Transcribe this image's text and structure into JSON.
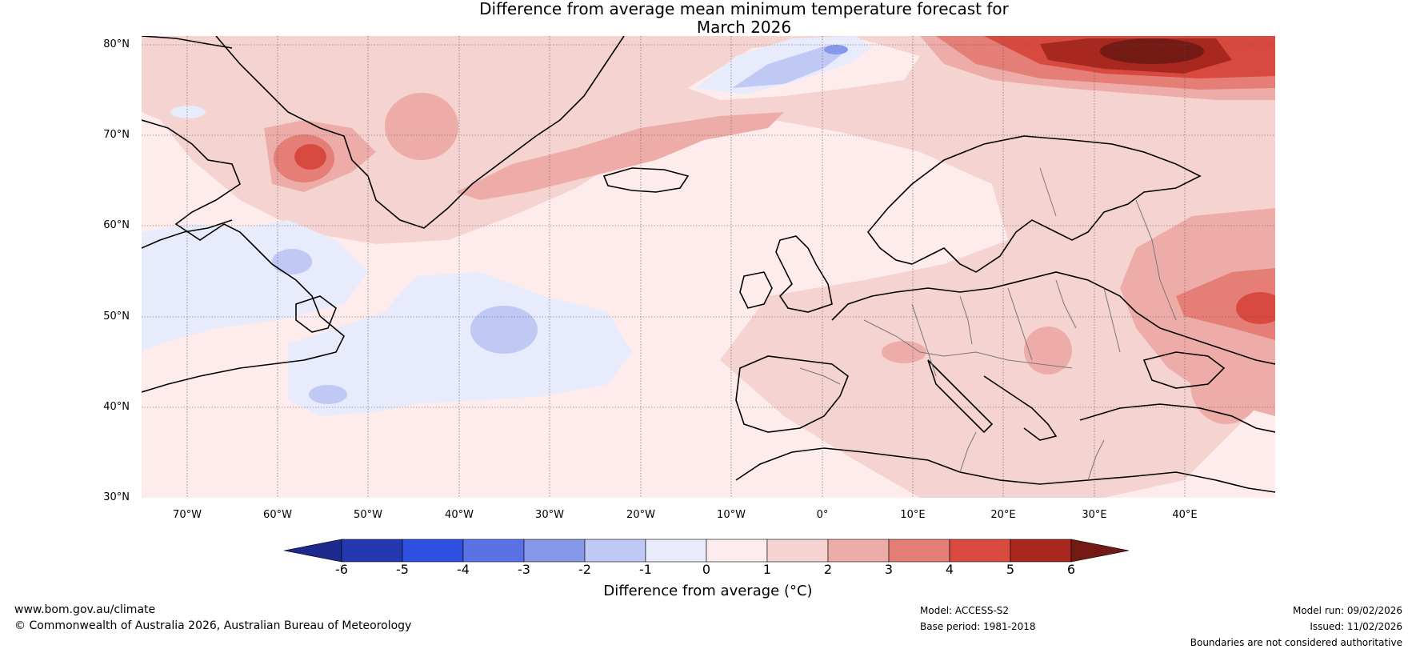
{
  "title": {
    "line1": "Difference from average mean minimum temperature forecast for",
    "line2": "March 2026"
  },
  "map": {
    "projection": "equirectangular",
    "lon_range": [
      -75,
      50
    ],
    "lat_range": [
      30,
      81
    ],
    "latitude_ticks": [
      "80°N",
      "70°N",
      "60°N",
      "50°N",
      "40°N",
      "30°N"
    ],
    "longitude_ticks": [
      "70°W",
      "60°W",
      "50°W",
      "40°W",
      "30°W",
      "20°W",
      "10°W",
      "0°",
      "10°E",
      "20°E",
      "30°E",
      "40°E"
    ],
    "regions": [
      "Greenland",
      "Iceland",
      "Canada",
      "Atlantic Ocean",
      "Europe",
      "Scandinavia",
      "Mediterranean",
      "Russia"
    ],
    "anomalies": [
      {
        "region": "Barents/Arctic north of Scandinavia",
        "value": "5 to 6+"
      },
      {
        "region": "West Greenland (Baffin Bay)",
        "value": "3 to 5"
      },
      {
        "region": "Western Russia",
        "value": "3 to 5"
      },
      {
        "region": "Labrador Sea / Central Atlantic",
        "value": "-2 to -1"
      },
      {
        "region": "Svalbard-Greenland gap",
        "value": "-2 to -3"
      }
    ]
  },
  "colorbar": {
    "title": "Difference from average (°C)",
    "ticks": [
      "-6",
      "-5",
      "-4",
      "-3",
      "-2",
      "-1",
      "0",
      "1",
      "2",
      "3",
      "4",
      "5",
      "6"
    ],
    "colors": [
      "#1c2a8c",
      "#2538b0",
      "#2f4fe0",
      "#5b72e6",
      "#8598ea",
      "#c0c8f4",
      "#e8ebfb",
      "#fdeceb",
      "#f5d3d1",
      "#eeaca9",
      "#e47e77",
      "#d84a40",
      "#a8271f",
      "#741a15"
    ]
  },
  "footer": {
    "url": "www.bom.gov.au/climate",
    "copyright": "© Commonwealth of Australia 2026, Australian Bureau of Meteorology",
    "model": "Model: ACCESS-S2",
    "base_period": "Base period: 1981-2018",
    "model_run": "Model run: 09/02/2026",
    "issued": "Issued: 11/02/2026",
    "disclaimer": "Boundaries are not considered authoritative"
  }
}
